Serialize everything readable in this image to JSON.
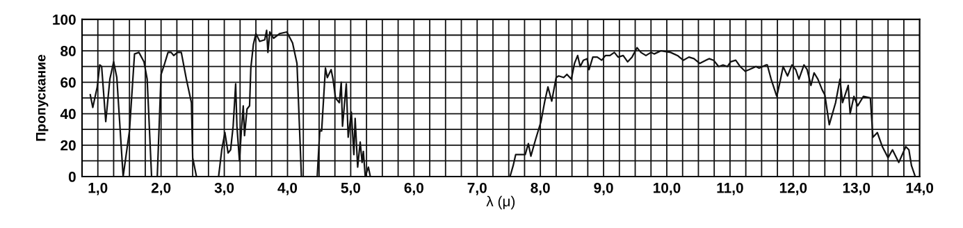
{
  "chart_data": {
    "type": "line",
    "xlabel": "λ (μ)",
    "ylabel": "Пропускание",
    "xlim": [
      0.75,
      14.0
    ],
    "ylim": [
      0,
      100
    ],
    "xticks": [
      {
        "value": 0.75,
        "label": null
      },
      {
        "value": 1,
        "label": "1,0"
      },
      {
        "value": 1.25,
        "label": null
      },
      {
        "value": 1.5,
        "label": null
      },
      {
        "value": 1.75,
        "label": null
      },
      {
        "value": 2,
        "label": "2,0"
      },
      {
        "value": 2.25,
        "label": null
      },
      {
        "value": 2.5,
        "label": null
      },
      {
        "value": 2.75,
        "label": null
      },
      {
        "value": 3,
        "label": "3,0"
      },
      {
        "value": 3.25,
        "label": null
      },
      {
        "value": 3.5,
        "label": null
      },
      {
        "value": 3.75,
        "label": null
      },
      {
        "value": 4,
        "label": "4,0"
      },
      {
        "value": 4.25,
        "label": null
      },
      {
        "value": 4.5,
        "label": null
      },
      {
        "value": 4.75,
        "label": null
      },
      {
        "value": 5,
        "label": "5,0"
      },
      {
        "value": 5.25,
        "label": null
      },
      {
        "value": 5.5,
        "label": null
      },
      {
        "value": 5.75,
        "label": null
      },
      {
        "value": 6,
        "label": "6,0"
      },
      {
        "value": 6.25,
        "label": null
      },
      {
        "value": 6.5,
        "label": null
      },
      {
        "value": 6.75,
        "label": null
      },
      {
        "value": 7,
        "label": "7,0"
      },
      {
        "value": 7.25,
        "label": null
      },
      {
        "value": 7.5,
        "label": null
      },
      {
        "value": 7.75,
        "label": null
      },
      {
        "value": 8,
        "label": "8,0"
      },
      {
        "value": 8.25,
        "label": null
      },
      {
        "value": 8.5,
        "label": null
      },
      {
        "value": 8.75,
        "label": null
      },
      {
        "value": 9,
        "label": "9,0"
      },
      {
        "value": 9.25,
        "label": null
      },
      {
        "value": 9.5,
        "label": null
      },
      {
        "value": 9.75,
        "label": null
      },
      {
        "value": 10,
        "label": "10,0"
      },
      {
        "value": 10.25,
        "label": null
      },
      {
        "value": 10.5,
        "label": null
      },
      {
        "value": 10.75,
        "label": null
      },
      {
        "value": 11,
        "label": "11,0"
      },
      {
        "value": 11.25,
        "label": null
      },
      {
        "value": 11.5,
        "label": null
      },
      {
        "value": 11.75,
        "label": null
      },
      {
        "value": 12,
        "label": "12,0"
      },
      {
        "value": 12.25,
        "label": null
      },
      {
        "value": 12.5,
        "label": null
      },
      {
        "value": 12.75,
        "label": null
      },
      {
        "value": 13,
        "label": "13,0"
      },
      {
        "value": 13.25,
        "label": null
      },
      {
        "value": 13.5,
        "label": null
      },
      {
        "value": 13.75,
        "label": null
      },
      {
        "value": 14,
        "label": "14,0"
      }
    ],
    "yticks": [
      0,
      {
        "value": 10,
        "label": null
      },
      20,
      {
        "value": 30,
        "label": null
      },
      40,
      {
        "value": 50,
        "label": null
      },
      60,
      {
        "value": 70,
        "label": null
      },
      80,
      {
        "value": 90,
        "label": null
      },
      100
    ],
    "grid": true,
    "marker": "none",
    "line_style": "solid",
    "series": [
      {
        "color": "#111111",
        "x": [
          0.88,
          0.92,
          0.99,
          1.03,
          1.06,
          1.125,
          1.19,
          1.25,
          1.3,
          1.4,
          1.5,
          1.58,
          1.65,
          1.73,
          1.78,
          1.85,
          1.9,
          1.94,
          2.0,
          2.05,
          2.11,
          2.16,
          2.2,
          2.26,
          2.32,
          2.4,
          2.48,
          2.5,
          2.56,
          2.7,
          2.91,
          2.96,
          3.01,
          3.06,
          3.1,
          3.14,
          3.18,
          3.2,
          3.24,
          3.27,
          3.3,
          3.32,
          3.36,
          3.4,
          3.42,
          3.46,
          3.5,
          3.56,
          3.64,
          3.67,
          3.69,
          3.72,
          3.78,
          3.88,
          3.99,
          4.08,
          4.15,
          4.22,
          4.35,
          4.47,
          4.51,
          4.54,
          4.6,
          4.63,
          4.69,
          4.72,
          4.76,
          4.82,
          4.85,
          4.87,
          4.93,
          4.96,
          5.01,
          5.05,
          5.07,
          5.11,
          5.15,
          5.18,
          5.2,
          5.23,
          5.28,
          5.31,
          6.5,
          7.52,
          7.57,
          7.61,
          7.68,
          7.76,
          7.81,
          7.85,
          7.92,
          8.01,
          8.07,
          8.12,
          8.18,
          8.25,
          8.29,
          8.37,
          8.42,
          8.49,
          8.54,
          8.59,
          8.63,
          8.68,
          8.74,
          8.77,
          8.83,
          8.9,
          8.97,
          9.03,
          9.1,
          9.17,
          9.23,
          9.31,
          9.38,
          9.45,
          9.53,
          9.59,
          9.67,
          9.75,
          9.8,
          9.91,
          10.06,
          10.17,
          10.26,
          10.35,
          10.43,
          10.52,
          10.67,
          10.74,
          10.82,
          10.89,
          10.96,
          11.01,
          11.09,
          11.16,
          11.24,
          11.3,
          11.41,
          11.46,
          11.57,
          11.59,
          11.65,
          11.74,
          11.8,
          11.84,
          11.91,
          11.98,
          12.04,
          12.09,
          12.17,
          12.22,
          12.28,
          12.33,
          12.39,
          12.46,
          12.5,
          12.57,
          12.67,
          12.74,
          12.78,
          12.87,
          12.9,
          12.96,
          13.02,
          13.11,
          13.22,
          13.26,
          13.33,
          13.41,
          13.5,
          13.57,
          13.67,
          13.78,
          13.83,
          13.87,
          13.93
        ],
        "values": [
          52,
          44,
          57,
          71,
          70,
          35,
          62,
          73,
          63,
          0,
          29,
          78,
          79,
          73,
          62,
          0,
          null,
          0,
          65,
          71,
          79,
          79,
          77,
          79,
          79,
          62,
          47,
          12,
          0,
          null,
          0,
          17,
          28,
          15,
          17,
          32,
          59,
          32,
          10,
          29,
          45,
          26,
          43,
          45,
          69,
          84,
          91,
          86,
          87,
          93,
          79,
          92,
          88,
          91,
          92,
          85,
          72,
          0,
          null,
          0,
          29,
          29,
          69,
          63,
          68,
          62,
          50,
          47,
          60,
          32,
          59,
          25,
          41,
          14,
          37,
          6,
          22,
          9,
          16,
          0,
          6,
          0,
          null,
          0,
          7,
          14,
          14,
          14,
          21,
          13,
          23,
          35,
          48,
          57,
          48,
          63,
          64,
          63,
          65,
          62,
          72,
          77,
          70,
          74,
          75,
          68,
          76,
          76,
          74,
          77,
          77,
          79,
          76,
          77,
          73,
          76,
          82,
          79,
          77,
          79,
          78,
          80,
          79,
          77,
          74,
          76,
          75,
          72,
          75,
          74,
          70,
          71,
          70,
          73,
          74,
          70,
          67,
          68,
          70,
          69,
          71,
          71,
          62,
          51,
          62,
          70,
          64,
          71,
          68,
          62,
          71,
          68,
          58,
          66,
          62,
          55,
          52,
          33,
          47,
          62,
          47,
          58,
          40,
          51,
          45,
          51,
          50,
          25,
          28,
          19,
          12,
          17,
          9,
          19,
          17,
          7,
          0
        ]
      }
    ]
  }
}
